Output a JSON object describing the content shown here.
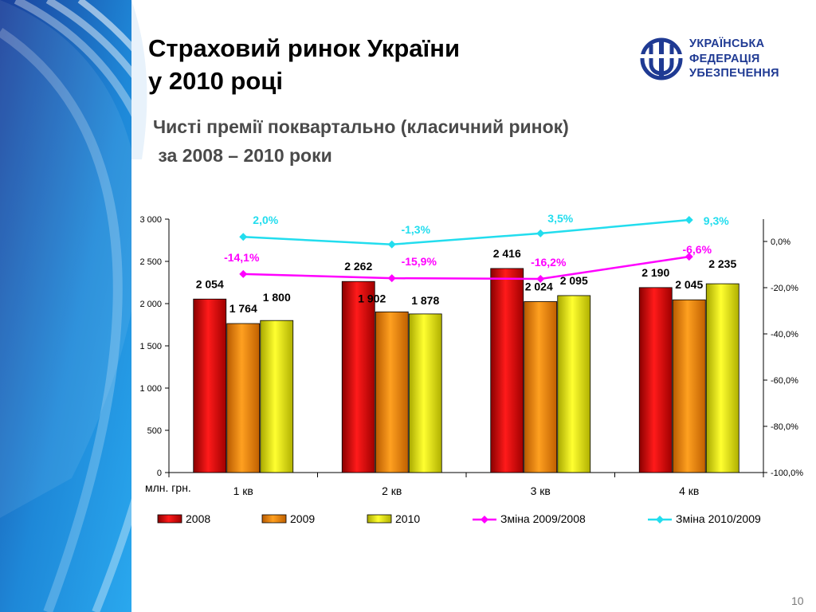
{
  "slide": {
    "title_line1": "Страховий ринок України",
    "title_line2": "у 2010 році",
    "subtitle_line1": "Чисті премії поквартально (класичний ринок)",
    "subtitle_line2": " за 2008 – 2010 роки",
    "page_number": "10"
  },
  "logo": {
    "line1": "УКРАЇНСЬКА",
    "line2": "ФЕДЕРАЦІЯ",
    "line3": "УБЕЗПЕЧЕННЯ",
    "color": "#1f3a93"
  },
  "chart_data": {
    "type": "bar",
    "categories": [
      "1 кв",
      "2 кв",
      "3 кв",
      "4 кв"
    ],
    "unit_label": "млн. грн.",
    "series": [
      {
        "name": "2008",
        "values": [
          2054,
          2262,
          2416,
          2190
        ],
        "labels": [
          "2 054",
          "2 262",
          "2 416",
          "2 190"
        ],
        "color": "#e00000"
      },
      {
        "name": "2009",
        "values": [
          1764,
          1902,
          2024,
          2045
        ],
        "labels": [
          "1 764",
          "1 902",
          "2 024",
          "2 045"
        ],
        "color": "#f08c00"
      },
      {
        "name": "2010",
        "values": [
          1800,
          1878,
          2095,
          2235
        ],
        "labels": [
          "1 800",
          "1 878",
          "2 095",
          "2 235"
        ],
        "color": "#f2f200"
      }
    ],
    "line_series": [
      {
        "name": "Зміна 2009/2008",
        "values": [
          -14.1,
          -15.9,
          -16.2,
          -6.6
        ],
        "labels": [
          "-14,1%",
          "-15,9%",
          "-16,2%",
          "-6,6%"
        ],
        "color": "#ff00ff"
      },
      {
        "name": "Зміна 2010/2009",
        "values": [
          2.0,
          -1.3,
          3.5,
          9.3
        ],
        "labels": [
          "2,0%",
          "-1,3%",
          "3,5%",
          "9,3%"
        ],
        "color": "#22ddee"
      }
    ],
    "ylim": [
      0,
      3000
    ],
    "yticks": [
      0,
      500,
      1000,
      1500,
      2000,
      2500,
      3000
    ],
    "ytick_labels": [
      "0",
      "500",
      "1 000",
      "1 500",
      "2 000",
      "2 500",
      "3 000"
    ],
    "y2lim": [
      -100,
      10
    ],
    "y2ticks": [
      0,
      -20,
      -40,
      -60,
      -80,
      -100
    ],
    "y2tick_labels": [
      "0,0%",
      "-20,0%",
      "-40,0%",
      "-60,0%",
      "-80,0%",
      "-100,0%"
    ],
    "legend_position": "bottom",
    "grid": false
  }
}
